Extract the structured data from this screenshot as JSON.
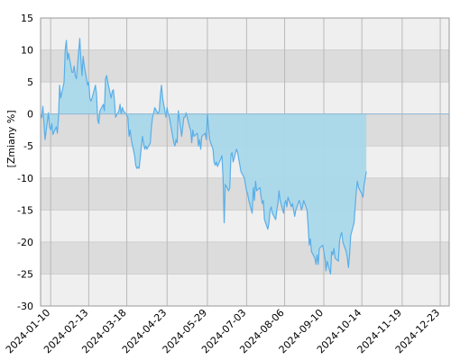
{
  "chart_data": {
    "type": "area",
    "ylabel": "[Zmiany %]",
    "y_ticks": [
      15,
      10,
      5,
      0,
      -5,
      -10,
      -15,
      -20,
      -25,
      -30
    ],
    "ylim": [
      -30,
      15
    ],
    "x_ticks": [
      "2024-01-10",
      "2024-02-13",
      "2024-03-18",
      "2024-04-23",
      "2024-05-29",
      "2024-07-03",
      "2024-08-06",
      "2024-09-10",
      "2024-10-14",
      "2024-11-19",
      "2024-12-23"
    ],
    "xlim": [
      "2024-01-01",
      "2024-12-31"
    ],
    "grid": true,
    "background_bands": true,
    "colors": {
      "line": "#5aaee8",
      "fill_positive": "#bfe4ef",
      "fill_negative": "#a9d8ea",
      "band_light": "#efefef",
      "band_dark": "#dcdcdc",
      "grid": "#cfcfcf"
    },
    "series": [
      {
        "points": [
          [
            "2024-01-01",
            0.0
          ],
          [
            "2024-01-02",
            -0.6
          ],
          [
            "2024-01-03",
            1.2
          ],
          [
            "2024-01-04",
            -1.4
          ],
          [
            "2024-01-05",
            -4.0
          ],
          [
            "2024-01-08",
            0.2
          ],
          [
            "2024-01-09",
            -2.0
          ],
          [
            "2024-01-10",
            -2.5
          ],
          [
            "2024-01-11",
            -1.5
          ],
          [
            "2024-01-12",
            -3.2
          ],
          [
            "2024-01-15",
            -2.0
          ],
          [
            "2024-01-16",
            -3.0
          ],
          [
            "2024-01-17",
            -0.5
          ],
          [
            "2024-01-18",
            4.5
          ],
          [
            "2024-01-19",
            2.5
          ],
          [
            "2024-01-22",
            5.0
          ],
          [
            "2024-01-23",
            10.0
          ],
          [
            "2024-01-24",
            11.5
          ],
          [
            "2024-01-25",
            8.5
          ],
          [
            "2024-01-26",
            9.5
          ],
          [
            "2024-01-29",
            6.5
          ],
          [
            "2024-01-30",
            6.5
          ],
          [
            "2024-01-31",
            7.5
          ],
          [
            "2024-02-01",
            6.0
          ],
          [
            "2024-02-02",
            5.5
          ],
          [
            "2024-02-05",
            11.8
          ],
          [
            "2024-02-06",
            8.5
          ],
          [
            "2024-02-07",
            6.0
          ],
          [
            "2024-02-08",
            9.0
          ],
          [
            "2024-02-09",
            7.5
          ],
          [
            "2024-02-12",
            4.5
          ],
          [
            "2024-02-13",
            5.0
          ],
          [
            "2024-02-14",
            2.5
          ],
          [
            "2024-02-15",
            2.0
          ],
          [
            "2024-02-16",
            2.5
          ],
          [
            "2024-02-19",
            4.5
          ],
          [
            "2024-02-20",
            3.0
          ],
          [
            "2024-02-21",
            -1.0
          ],
          [
            "2024-02-22",
            -1.5
          ],
          [
            "2024-02-23",
            0.5
          ],
          [
            "2024-02-26",
            1.5
          ],
          [
            "2024-02-27",
            0.5
          ],
          [
            "2024-02-28",
            5.5
          ],
          [
            "2024-02-29",
            6.0
          ],
          [
            "2024-03-01",
            5.0
          ],
          [
            "2024-03-04",
            2.5
          ],
          [
            "2024-03-05",
            3.5
          ],
          [
            "2024-03-06",
            3.8
          ],
          [
            "2024-03-07",
            2.0
          ],
          [
            "2024-03-08",
            -0.5
          ],
          [
            "2024-03-11",
            0.5
          ],
          [
            "2024-03-12",
            1.5
          ],
          [
            "2024-03-13",
            0.0
          ],
          [
            "2024-03-14",
            1.0
          ],
          [
            "2024-03-15",
            0.5
          ],
          [
            "2024-03-18",
            -0.2
          ],
          [
            "2024-03-19",
            -0.5
          ],
          [
            "2024-03-20",
            -3.5
          ],
          [
            "2024-03-21",
            -2.5
          ],
          [
            "2024-03-22",
            -4.0
          ],
          [
            "2024-03-25",
            -6.5
          ],
          [
            "2024-03-26",
            -8.0
          ],
          [
            "2024-03-27",
            -8.5
          ],
          [
            "2024-03-28",
            -8.3
          ],
          [
            "2024-03-29",
            -8.5
          ],
          [
            "2024-04-01",
            -3.5
          ],
          [
            "2024-04-02",
            -4.5
          ],
          [
            "2024-04-03",
            -5.5
          ],
          [
            "2024-04-04",
            -5.0
          ],
          [
            "2024-04-05",
            -5.5
          ],
          [
            "2024-04-08",
            -4.5
          ],
          [
            "2024-04-09",
            -2.0
          ],
          [
            "2024-04-10",
            -0.5
          ],
          [
            "2024-04-11",
            0.2
          ],
          [
            "2024-04-12",
            1.0
          ],
          [
            "2024-04-15",
            0.0
          ],
          [
            "2024-04-16",
            0.5
          ],
          [
            "2024-04-17",
            3.0
          ],
          [
            "2024-04-18",
            4.5
          ],
          [
            "2024-04-19",
            2.5
          ],
          [
            "2024-04-22",
            -0.5
          ],
          [
            "2024-04-23",
            1.0
          ],
          [
            "2024-04-24",
            0.0
          ],
          [
            "2024-04-25",
            -0.5
          ],
          [
            "2024-04-26",
            -1.5
          ],
          [
            "2024-04-29",
            -4.5
          ],
          [
            "2024-04-30",
            -5.0
          ],
          [
            "2024-05-01",
            -4.0
          ],
          [
            "2024-05-02",
            -4.5
          ],
          [
            "2024-05-03",
            0.5
          ],
          [
            "2024-05-06",
            -3.5
          ],
          [
            "2024-05-07",
            -2.0
          ],
          [
            "2024-05-08",
            -0.5
          ],
          [
            "2024-05-09",
            -0.5
          ],
          [
            "2024-05-10",
            0.2
          ],
          [
            "2024-05-13",
            -2.0
          ],
          [
            "2024-05-14",
            -2.5
          ],
          [
            "2024-05-15",
            -4.5
          ],
          [
            "2024-05-16",
            -2.5
          ],
          [
            "2024-05-17",
            -3.5
          ],
          [
            "2024-05-20",
            -3.0
          ],
          [
            "2024-05-21",
            -5.0
          ],
          [
            "2024-05-22",
            -4.0
          ],
          [
            "2024-05-23",
            -5.5
          ],
          [
            "2024-05-24",
            -3.5
          ],
          [
            "2024-05-27",
            -3.0
          ],
          [
            "2024-05-28",
            -4.0
          ],
          [
            "2024-05-29",
            0.0
          ],
          [
            "2024-05-30",
            -2.0
          ],
          [
            "2024-05-31",
            -4.0
          ],
          [
            "2024-06-03",
            -5.5
          ],
          [
            "2024-06-04",
            -7.5
          ],
          [
            "2024-06-05",
            -8.0
          ],
          [
            "2024-06-06",
            -7.5
          ],
          [
            "2024-06-07",
            -8.2
          ],
          [
            "2024-06-10",
            -7.0
          ],
          [
            "2024-06-11",
            -6.5
          ],
          [
            "2024-06-12",
            -10.0
          ],
          [
            "2024-06-13",
            -17.0
          ],
          [
            "2024-06-14",
            -11.0
          ],
          [
            "2024-06-17",
            -12.0
          ],
          [
            "2024-06-18",
            -11.5
          ],
          [
            "2024-06-19",
            -6.5
          ],
          [
            "2024-06-20",
            -6.0
          ],
          [
            "2024-06-21",
            -7.5
          ],
          [
            "2024-06-24",
            -5.5
          ],
          [
            "2024-06-25",
            -6.0
          ],
          [
            "2024-06-26",
            -7.0
          ],
          [
            "2024-06-27",
            -8.0
          ],
          [
            "2024-06-28",
            -9.0
          ],
          [
            "2024-07-01",
            -10.0
          ],
          [
            "2024-07-02",
            -11.0
          ],
          [
            "2024-07-03",
            -12.0
          ],
          [
            "2024-07-04",
            -12.5
          ],
          [
            "2024-07-05",
            -13.5
          ],
          [
            "2024-07-08",
            -15.5
          ],
          [
            "2024-07-09",
            -11.5
          ],
          [
            "2024-07-10",
            -13.5
          ],
          [
            "2024-07-11",
            -10.5
          ],
          [
            "2024-07-12",
            -12.0
          ],
          [
            "2024-07-15",
            -11.5
          ],
          [
            "2024-07-16",
            -13.0
          ],
          [
            "2024-07-17",
            -14.0
          ],
          [
            "2024-07-18",
            -13.5
          ],
          [
            "2024-07-19",
            -16.5
          ],
          [
            "2024-07-22",
            -18.0
          ],
          [
            "2024-07-23",
            -17.0
          ],
          [
            "2024-07-24",
            -15.0
          ],
          [
            "2024-07-25",
            -14.5
          ],
          [
            "2024-07-26",
            -15.5
          ],
          [
            "2024-07-29",
            -16.5
          ],
          [
            "2024-07-30",
            -15.0
          ],
          [
            "2024-07-31",
            -14.0
          ],
          [
            "2024-08-01",
            -12.0
          ],
          [
            "2024-08-02",
            -13.5
          ],
          [
            "2024-08-05",
            -15.5
          ],
          [
            "2024-08-06",
            -14.0
          ],
          [
            "2024-08-07",
            -13.5
          ],
          [
            "2024-08-08",
            -14.5
          ],
          [
            "2024-08-09",
            -13.0
          ],
          [
            "2024-08-12",
            -14.5
          ],
          [
            "2024-08-13",
            -14.0
          ],
          [
            "2024-08-14",
            -15.0
          ],
          [
            "2024-08-15",
            -16.0
          ],
          [
            "2024-08-16",
            -15.0
          ],
          [
            "2024-08-19",
            -13.5
          ],
          [
            "2024-08-20",
            -14.0
          ],
          [
            "2024-08-21",
            -15.0
          ],
          [
            "2024-08-22",
            -14.5
          ],
          [
            "2024-08-23",
            -13.5
          ],
          [
            "2024-08-26",
            -15.0
          ],
          [
            "2024-08-27",
            -17.5
          ],
          [
            "2024-08-28",
            -20.5
          ],
          [
            "2024-08-29",
            -19.5
          ],
          [
            "2024-08-30",
            -21.5
          ],
          [
            "2024-09-02",
            -22.5
          ],
          [
            "2024-09-03",
            -23.5
          ],
          [
            "2024-09-04",
            -22.0
          ],
          [
            "2024-09-05",
            -23.5
          ],
          [
            "2024-09-06",
            -21.0
          ],
          [
            "2024-09-09",
            -20.5
          ],
          [
            "2024-09-10",
            -21.5
          ],
          [
            "2024-09-11",
            -22.5
          ],
          [
            "2024-09-12",
            -24.5
          ],
          [
            "2024-09-13",
            -23.0
          ],
          [
            "2024-09-16",
            -25.0
          ],
          [
            "2024-09-17",
            -21.5
          ],
          [
            "2024-09-18",
            -22.0
          ],
          [
            "2024-09-19",
            -21.0
          ],
          [
            "2024-09-20",
            -22.5
          ],
          [
            "2024-09-23",
            -23.0
          ],
          [
            "2024-09-24",
            -20.0
          ],
          [
            "2024-09-25",
            -19.0
          ],
          [
            "2024-09-26",
            -18.5
          ],
          [
            "2024-09-27",
            -20.0
          ],
          [
            "2024-09-30",
            -21.5
          ],
          [
            "2024-10-01",
            -22.5
          ],
          [
            "2024-10-02",
            -24.0
          ],
          [
            "2024-10-03",
            -22.0
          ],
          [
            "2024-10-04",
            -19.0
          ],
          [
            "2024-10-07",
            -17.0
          ],
          [
            "2024-10-08",
            -14.5
          ],
          [
            "2024-10-09",
            -12.0
          ],
          [
            "2024-10-10",
            -10.5
          ],
          [
            "2024-10-11",
            -11.5
          ],
          [
            "2024-10-14",
            -12.5
          ],
          [
            "2024-10-15",
            -13.0
          ],
          [
            "2024-10-16",
            -11.0
          ],
          [
            "2024-10-17",
            -10.0
          ],
          [
            "2024-10-18",
            -9.0
          ]
        ]
      }
    ]
  }
}
